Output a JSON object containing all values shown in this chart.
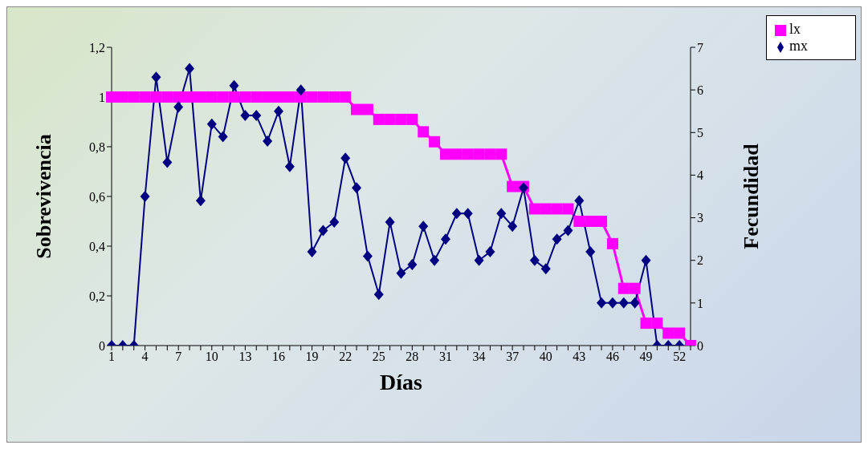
{
  "chart_data": {
    "type": "line",
    "xlabel": "Días",
    "ylabel": "Sobrevivencia",
    "y2label": "Fecundidad",
    "categories": [
      "1",
      null,
      null,
      "4",
      null,
      null,
      "7",
      null,
      null,
      "10",
      null,
      null,
      "13",
      null,
      null,
      "16",
      null,
      null,
      "19",
      null,
      null,
      "22",
      null,
      null,
      "25",
      null,
      null,
      "28",
      null,
      null,
      "31",
      null,
      null,
      "34",
      null,
      null,
      "37",
      null,
      null,
      "40",
      null,
      null,
      "43",
      null,
      null,
      "46",
      null,
      null,
      "49",
      null,
      null,
      "52",
      null
    ],
    "series": [
      {
        "name": "lx",
        "color": "#ff00ff",
        "marker": "square",
        "values": [
          1,
          1,
          1,
          1,
          1,
          1,
          1,
          1,
          1,
          1,
          1,
          1,
          1,
          1,
          1,
          1,
          1,
          1,
          1,
          1,
          1,
          1,
          0.95,
          0.95,
          0.91,
          0.91,
          0.91,
          0.91,
          0.86,
          0.82,
          0.77,
          0.77,
          0.77,
          0.77,
          0.77,
          0.77,
          0.64,
          0.64,
          0.55,
          0.55,
          0.55,
          0.55,
          0.5,
          0.5,
          0.5,
          0.41,
          0.23,
          0.23,
          0.09,
          0.09,
          0.05,
          0.05,
          0
        ]
      },
      {
        "name": "mx",
        "color": "#000080",
        "marker": "diamond",
        "axis": "y2",
        "values": [
          0,
          0,
          0,
          3.5,
          6.3,
          4.3,
          5.6,
          6.5,
          3.4,
          5.2,
          4.9,
          6.1,
          5.4,
          5.4,
          4.8,
          5.5,
          4.2,
          6,
          2.2,
          2.7,
          2.9,
          4.4,
          3.7,
          2.1,
          1.2,
          2.9,
          1.7,
          1.9,
          2.8,
          2,
          2.5,
          3.1,
          3.1,
          2,
          2.2,
          3.1,
          2.8,
          3.7,
          2,
          1.8,
          2.5,
          2.7,
          3.4,
          2.2,
          1,
          1,
          1,
          1,
          2,
          0,
          0,
          0,
          null
        ]
      }
    ],
    "ylim": [
      0,
      1.2
    ],
    "yticks": [
      0,
      {
        "value": 0.2,
        "label": "0,2"
      },
      {
        "value": 0.4,
        "label": "0,4"
      },
      {
        "value": 0.6,
        "label": "0,6"
      },
      {
        "value": 0.8,
        "label": "0,8"
      },
      1,
      {
        "value": 1.2,
        "label": "1,2"
      }
    ],
    "y2lim": [
      0,
      7
    ],
    "y2ticks": [
      0,
      1,
      2,
      3,
      4,
      5,
      6,
      7
    ],
    "grid": false,
    "legend": "top right"
  }
}
